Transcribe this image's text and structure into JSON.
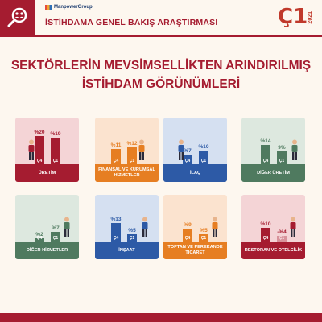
{
  "header": {
    "brand": "ManpowerGroup",
    "title": "İSTİHDAMA GENEL BAKIŞ ARAŞTIRMASI",
    "quarter": "Ç1",
    "year": "2021"
  },
  "main_title": {
    "line1": "SEKTÖRLERİN MEVSİMSELLİKTEN ARINDIRILMIŞ",
    "line2": "İSTİHDAM GÖRÜNÜMLERİ"
  },
  "colors": {
    "brand_red": "#a51c30",
    "cream": "#fdf7ef"
  },
  "icons": [
    "magnifier-people-icon",
    "manpower-logo"
  ],
  "chart_data": {
    "type": "bar",
    "series_labels": [
      "Ç4",
      "Ç1"
    ],
    "sectors": [
      {
        "name": "ÜRETİM",
        "labels": [
          "%20",
          "%19"
        ],
        "values": [
          20,
          19
        ],
        "color": "#a51c30",
        "bg": "#f4d4d6"
      },
      {
        "name": "FİNANSAL VE KURUMSAL HİZMETLER",
        "labels": [
          "%11",
          "%12"
        ],
        "values": [
          11,
          12
        ],
        "color": "#e67e22",
        "bg": "#fbe3cf"
      },
      {
        "name": "İLAÇ",
        "labels": [
          "%7",
          "%10"
        ],
        "values": [
          7,
          10
        ],
        "color": "#2d5aa6",
        "bg": "#d5e0f1"
      },
      {
        "name": "DİĞER ÜRETİM",
        "labels": [
          "%14",
          "9%"
        ],
        "values": [
          14,
          9
        ],
        "color": "#4f7a5f",
        "bg": "#dde8df"
      },
      {
        "name": "DİĞER HİZMETLER",
        "labels": [
          "%2",
          "%7"
        ],
        "values": [
          2,
          7
        ],
        "color": "#4f7a5f",
        "bg": "#dde8df"
      },
      {
        "name": "İNŞAAT",
        "labels": [
          "%13",
          "%5"
        ],
        "values": [
          13,
          5
        ],
        "color": "#2d5aa6",
        "bg": "#d5e0f1"
      },
      {
        "name": "TOPTAN VE PEREKANDE TİCARET",
        "labels": [
          "%9",
          "%5"
        ],
        "values": [
          9,
          5
        ],
        "color": "#e67e22",
        "bg": "#fbe3cf"
      },
      {
        "name": "RESTORAN VE OTELCİLİK",
        "labels": [
          "%10",
          "-%4"
        ],
        "values": [
          10,
          -4
        ],
        "color": "#a51c30",
        "bg": "#f4d4d6"
      }
    ]
  }
}
